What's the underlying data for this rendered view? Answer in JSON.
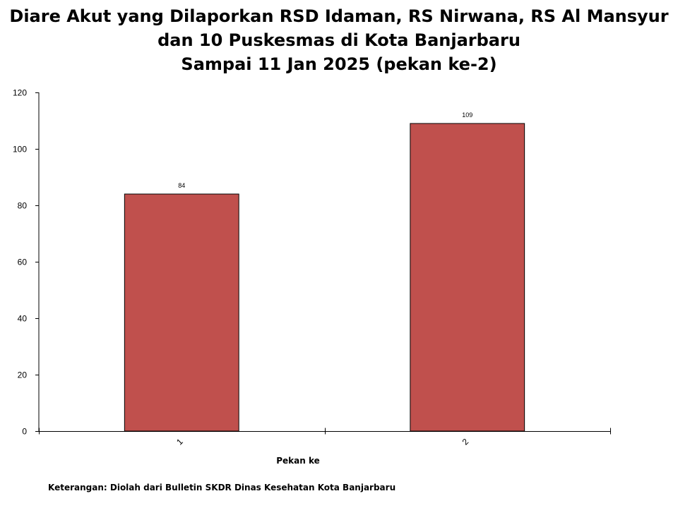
{
  "chart_data": {
    "type": "bar",
    "title": [
      "Diare Akut yang Dilaporkan RSD Idaman, RS Nirwana, RS Al Mansyur",
      "dan 10 Puskesmas di Kota Banjarbaru",
      "Sampai 11 Jan 2025 (pekan ke-2)"
    ],
    "categories": [
      "1",
      "2"
    ],
    "values": [
      84,
      109
    ],
    "data_labels": [
      "84",
      "109"
    ],
    "xlabel": "Pekan ke",
    "ylabel": "",
    "ylim": [
      0,
      120
    ],
    "yticks": [
      0,
      20,
      40,
      60,
      80,
      100,
      120
    ],
    "ytick_labels": [
      "0",
      "20",
      "40",
      "60",
      "80",
      "100",
      "120"
    ],
    "grid": false,
    "legend": "none",
    "bar_color": "#c0504d",
    "bar_edge_color": "#000000"
  },
  "footnote": "Keterangan: Diolah dari Bulletin SKDR Dinas Kesehatan Kota Banjarbaru"
}
